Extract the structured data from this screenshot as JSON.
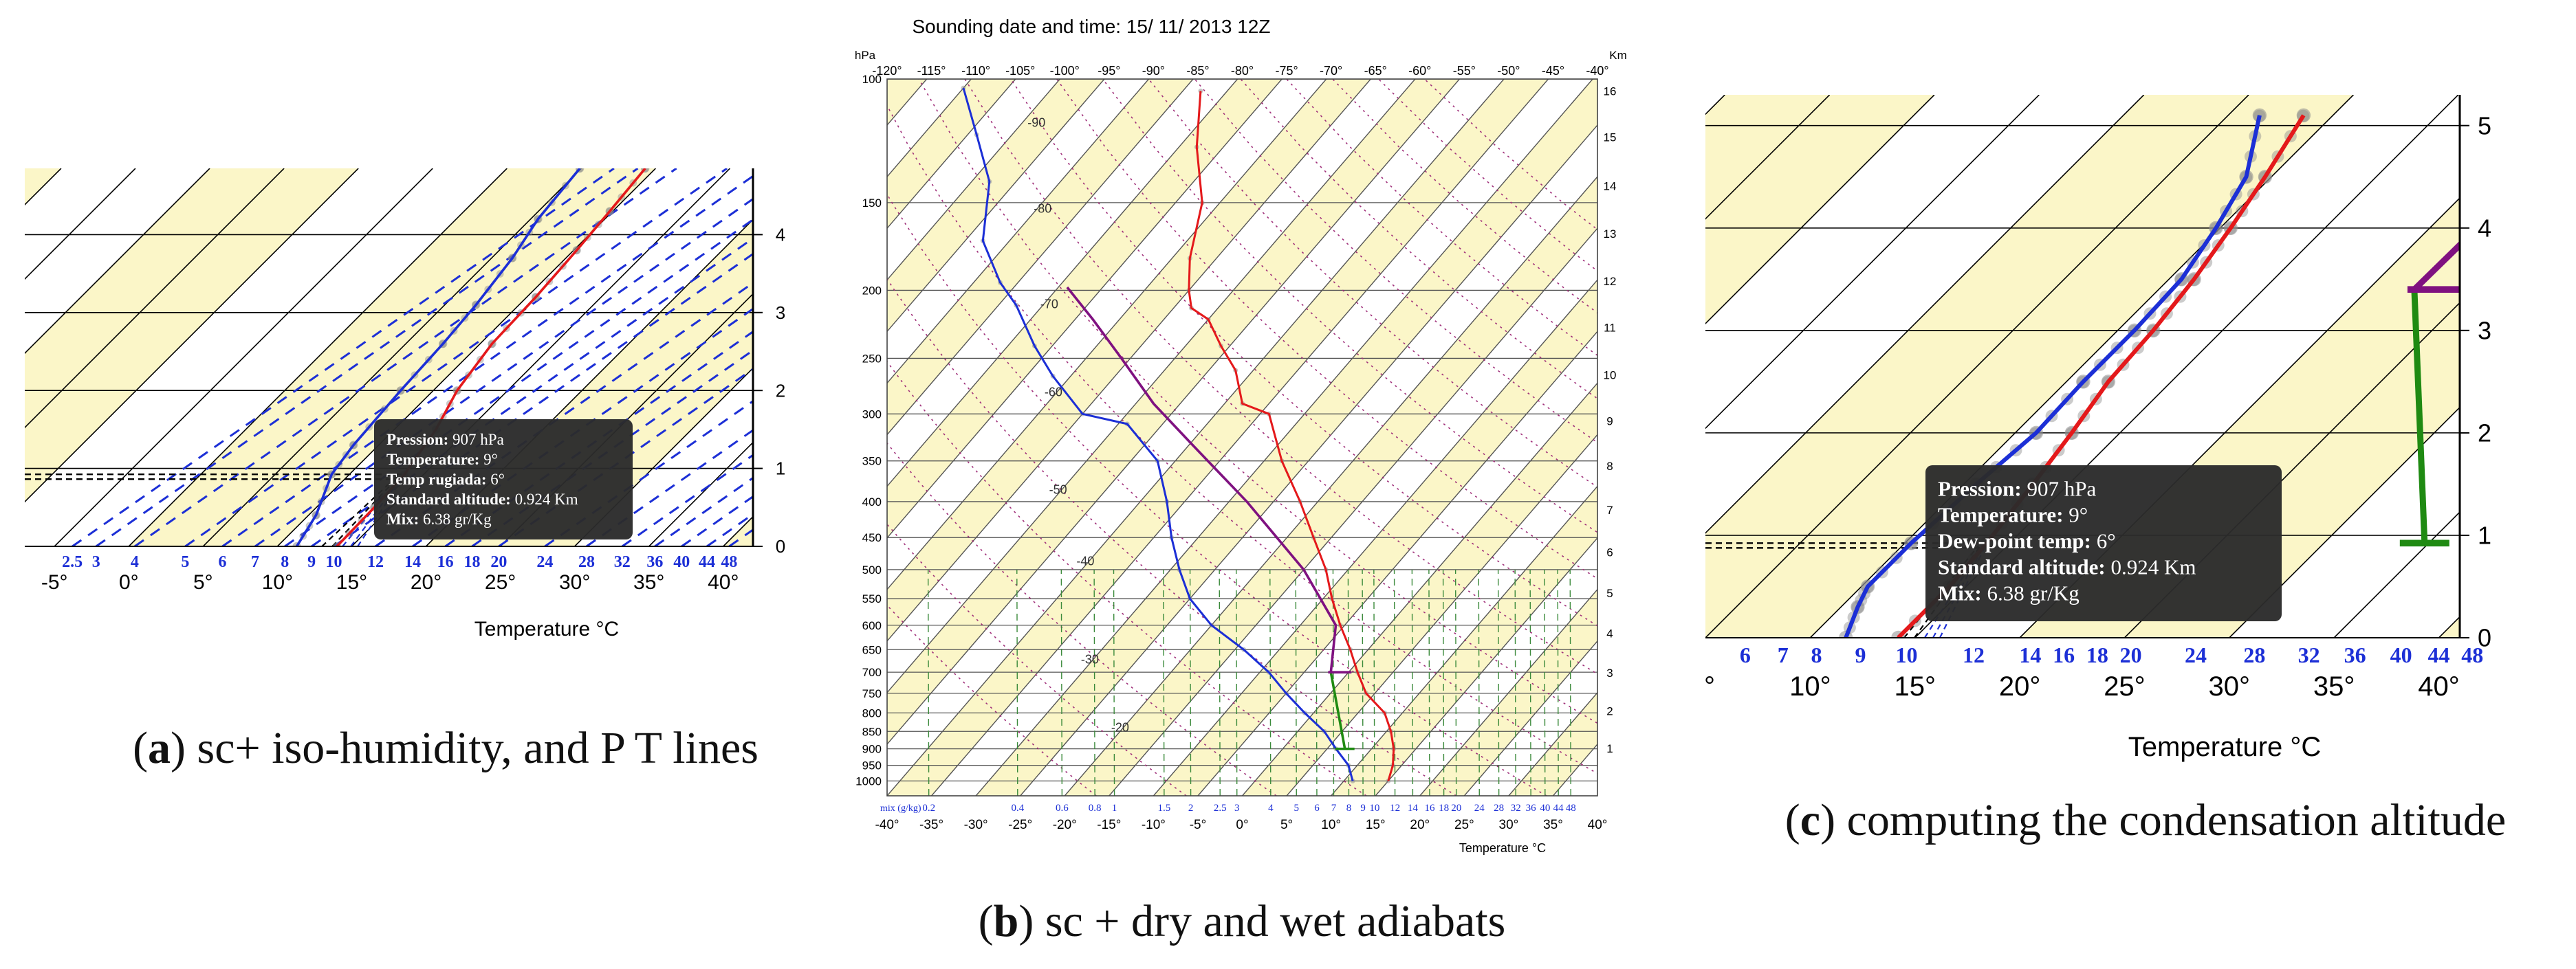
{
  "chart_data": [
    {
      "id": "a",
      "type": "line",
      "subtype": "skew-t",
      "caption_letter": "a",
      "caption_text": " sc+ iso-humidity, and P T lines",
      "xlabel": "Temperature °C",
      "xlim": [
        -7,
        42
      ],
      "x_ticks": [
        "-5°",
        "0°",
        "5°",
        "10°",
        "15°",
        "20°",
        "25°",
        "30°",
        "35°",
        "40°"
      ],
      "x_tick_values": [
        -5,
        0,
        5,
        10,
        15,
        20,
        25,
        30,
        35,
        40
      ],
      "ylim": [
        0,
        4.85
      ],
      "y_ticks": [
        "0",
        "1",
        "2",
        "3",
        "4"
      ],
      "y_tick_values": [
        0,
        1,
        2,
        3,
        4
      ],
      "mixing_ratio_labels": [
        "2.5",
        "3",
        "4",
        "5",
        "6",
        "7",
        "8",
        "9",
        "10",
        "12",
        "14",
        "16",
        "18",
        "20",
        "24",
        "28",
        "32",
        "36",
        "40",
        "44",
        "48"
      ],
      "mixing_ratio_positions": [
        -3.8,
        -2.2,
        0.4,
        3.8,
        6.3,
        8.5,
        10.5,
        12.3,
        13.8,
        16.6,
        19.1,
        21.3,
        23.1,
        24.9,
        28,
        30.8,
        33.2,
        35.4,
        37.2,
        38.9,
        40.4
      ],
      "temperature_profile": [
        [
          14,
          0
        ],
        [
          13.9,
          0.5
        ],
        [
          13.7,
          0.924
        ],
        [
          12.8,
          1.5
        ],
        [
          11.6,
          2
        ],
        [
          10.8,
          2.6
        ],
        [
          10.6,
          3.2
        ],
        [
          10.2,
          3.8
        ],
        [
          9.8,
          4.3
        ],
        [
          9.3,
          4.85
        ]
      ],
      "dewpoint_profile": [
        [
          11.3,
          0
        ],
        [
          10.5,
          0.4
        ],
        [
          8.8,
          0.924
        ],
        [
          8.3,
          1.3
        ],
        [
          7.8,
          2
        ],
        [
          7.5,
          2.6
        ],
        [
          7.1,
          3.1
        ],
        [
          6.4,
          3.7
        ],
        [
          5.5,
          4.2
        ],
        [
          4.9,
          4.85
        ]
      ],
      "lcl_altitude": 0.924,
      "tooltip": {
        "lines": [
          [
            "Pression:",
            "907 hPa"
          ],
          [
            "Temperature:",
            "9°"
          ],
          [
            "Temp rugiada:",
            "6°"
          ],
          [
            "Standard altitude:",
            "0.924 Km"
          ],
          [
            "Mix:",
            "6.38 gr/Kg"
          ]
        ]
      }
    },
    {
      "id": "b",
      "type": "line",
      "subtype": "skew-t",
      "caption_letter": "b",
      "caption_text": " sc + dry and wet adiabats",
      "title": "Sounding date and time: 15/ 11/ 2013 12Z",
      "left_unit": "hPa",
      "right_unit": "Km",
      "xlabel": "Temperature °C",
      "xlim": [
        -40,
        40
      ],
      "x_ticks": [
        "-40°",
        "-35°",
        "-30°",
        "-25°",
        "-20°",
        "-15°",
        "-10°",
        "-5°",
        "0°",
        "5°",
        "10°",
        "15°",
        "20°",
        "25°",
        "30°",
        "35°",
        "40°"
      ],
      "x_tick_values": [
        -40,
        -35,
        -30,
        -25,
        -20,
        -15,
        -10,
        -5,
        0,
        5,
        10,
        15,
        20,
        25,
        30,
        35,
        40
      ],
      "top_ticks": [
        "-120°",
        "-115°",
        "-110°",
        "-105°",
        "-100°",
        "-95°",
        "-90°",
        "-85°",
        "-80°",
        "-75°",
        "-70°",
        "-65°",
        "-60°",
        "-55°",
        "-50°",
        "-45°",
        "-40°"
      ],
      "pressure_ticks": [
        "100",
        "150",
        "200",
        "250",
        "300",
        "350",
        "400",
        "450",
        "500",
        "550",
        "600",
        "650",
        "700",
        "750",
        "800",
        "850",
        "900",
        "950",
        "1000"
      ],
      "pressure_values": [
        100,
        150,
        200,
        250,
        300,
        350,
        400,
        450,
        500,
        550,
        600,
        650,
        700,
        750,
        800,
        850,
        900,
        950,
        1000
      ],
      "km_ticks": [
        "1",
        "2",
        "3",
        "4",
        "5",
        "6",
        "7",
        "8",
        "9",
        "10",
        "11",
        "12",
        "13",
        "14",
        "15",
        "16"
      ],
      "km_values": [
        1,
        2,
        3,
        4,
        5,
        6,
        7,
        8,
        9,
        10,
        11,
        12,
        13,
        14,
        15,
        16
      ],
      "km_pressures": [
        899,
        795,
        701,
        616,
        540,
        472,
        411,
        356,
        307,
        264,
        226,
        194,
        166,
        142,
        121,
        104
      ],
      "isotherm_labels": [
        "-90",
        "-80",
        "-70",
        "-60",
        "-50",
        "-40",
        "-30",
        "-20"
      ],
      "isotherm_label_pos": [
        [
          -88,
          117
        ],
        [
          -79,
          155
        ],
        [
          -69,
          212
        ],
        [
          -60,
          283
        ],
        [
          -50,
          390
        ],
        [
          -40,
          493
        ],
        [
          -30,
          680
        ],
        [
          -20,
          850
        ]
      ],
      "mix_prefix": "mix (g/kg)",
      "mixing_ratio_labels": [
        "0.2",
        "0.4",
        "0.6",
        "0.8",
        "1",
        "1.5",
        "2",
        "2.5",
        "3",
        "4",
        "5",
        "6",
        "7",
        "8",
        "9",
        "10",
        "12",
        "14",
        "16",
        "18",
        "20",
        "24",
        "28",
        "32",
        "36",
        "40",
        "44",
        "48"
      ],
      "mixing_ratio_positions": [
        -35.3,
        -25.3,
        -20.3,
        -16.6,
        -14.4,
        -8.8,
        -5.8,
        -2.5,
        -0.6,
        3.2,
        6.1,
        8.4,
        10.3,
        12,
        13.6,
        14.9,
        17.2,
        19.2,
        21.1,
        22.7,
        24.1,
        26.7,
        28.9,
        30.8,
        32.5,
        34.1,
        35.6,
        37
      ],
      "temperature_profile": [
        [
          15,
          1000
        ],
        [
          14,
          950
        ],
        [
          12.5,
          900
        ],
        [
          10.5,
          850
        ],
        [
          8,
          800
        ],
        [
          4,
          750
        ],
        [
          1,
          700
        ],
        [
          -2,
          650
        ],
        [
          -5.5,
          600
        ],
        [
          -9,
          550
        ],
        [
          -12.5,
          500
        ],
        [
          -17,
          450
        ],
        [
          -22,
          400
        ],
        [
          -28,
          350
        ],
        [
          -34,
          300
        ],
        [
          -38,
          290
        ],
        [
          -42,
          260
        ],
        [
          -46,
          240
        ],
        [
          -50,
          220
        ],
        [
          -53,
          212
        ],
        [
          -55,
          200
        ],
        [
          -58,
          180
        ],
        [
          -62,
          150
        ],
        [
          -68,
          125
        ],
        [
          -73,
          104
        ]
      ],
      "dewpoint_profile": [
        [
          11,
          1000
        ],
        [
          9,
          950
        ],
        [
          6,
          900
        ],
        [
          3,
          850
        ],
        [
          -1,
          800
        ],
        [
          -5,
          750
        ],
        [
          -9,
          700
        ],
        [
          -14,
          650
        ],
        [
          -20,
          600
        ],
        [
          -25,
          550
        ],
        [
          -29,
          500
        ],
        [
          -33,
          450
        ],
        [
          -37,
          400
        ],
        [
          -42,
          350
        ],
        [
          -49,
          310
        ],
        [
          -55,
          300
        ],
        [
          -62,
          265
        ],
        [
          -67,
          240
        ],
        [
          -73,
          210
        ],
        [
          -77,
          195
        ],
        [
          -83,
          170
        ],
        [
          -88,
          140
        ],
        [
          -94,
          120
        ],
        [
          -100,
          103
        ]
      ],
      "parcel_dry": [
        [
          7,
          900
        ],
        [
          -2,
          700
        ]
      ],
      "parcel_moist": [
        [
          -2,
          700
        ],
        [
          -6,
          600
        ],
        [
          -15,
          500
        ],
        [
          -28,
          400
        ],
        [
          -40,
          330
        ],
        [
          -48,
          290
        ],
        [
          -56,
          250
        ],
        [
          -63,
          220
        ],
        [
          -69,
          198
        ]
      ]
    },
    {
      "id": "c",
      "type": "line",
      "subtype": "skew-t",
      "caption_letter": "c",
      "caption_text": " computing the condensation altitude",
      "xlabel": "Temperature °C",
      "xlim": [
        5,
        41
      ],
      "x_ticks": [
        "10°",
        "15°",
        "20°",
        "25°",
        "30°",
        "35°",
        "40°"
      ],
      "x_tick_values": [
        10,
        15,
        20,
        25,
        30,
        35,
        40
      ],
      "x_partial_tick": "°",
      "ylim": [
        0,
        5.3
      ],
      "y_ticks": [
        "0",
        "1",
        "2",
        "3",
        "4",
        "5"
      ],
      "y_tick_values": [
        0,
        1,
        2,
        3,
        4,
        5
      ],
      "mixing_ratio_labels": [
        "6",
        "7",
        "8",
        "9",
        "10",
        "12",
        "14",
        "16",
        "18",
        "20",
        "24",
        "28",
        "32",
        "36",
        "40",
        "44",
        "48"
      ],
      "mixing_ratio_positions": [
        6.9,
        8.7,
        10.3,
        12.4,
        14.6,
        17.8,
        20.5,
        22.1,
        23.7,
        25.3,
        28.4,
        31.2,
        33.8,
        36,
        38.2,
        40,
        41.6
      ],
      "temperature_profile": [
        [
          14.2,
          0
        ],
        [
          14.2,
          0.5
        ],
        [
          13.9,
          0.924
        ],
        [
          13.3,
          1.5
        ],
        [
          12.7,
          2
        ],
        [
          12,
          2.5
        ],
        [
          11.7,
          3
        ],
        [
          11.2,
          3.5
        ],
        [
          10.5,
          4
        ],
        [
          9.7,
          4.5
        ],
        [
          8.6,
          5.1
        ]
      ],
      "dewpoint_profile": [
        [
          11.7,
          0
        ],
        [
          10.8,
          0.3
        ],
        [
          10.3,
          0.5
        ],
        [
          10.3,
          0.924
        ],
        [
          10.6,
          1.5
        ],
        [
          11,
          2
        ],
        [
          10.8,
          2.5
        ],
        [
          10.8,
          3
        ],
        [
          10.6,
          3.5
        ],
        [
          9.8,
          4
        ],
        [
          8.8,
          4.5
        ],
        [
          6.5,
          5.1
        ]
      ],
      "lcl_altitude": 0.924,
      "parcel_dry": [
        [
          34.8,
          0.924
        ],
        [
          22.2,
          3.4
        ]
      ],
      "parcel_moist": [
        [
          22.2,
          3.4
        ],
        [
          22.3,
          4.3
        ],
        [
          21.8,
          5.1
        ]
      ],
      "tooltip": {
        "lines": [
          [
            "Pression:",
            "907 hPa"
          ],
          [
            "Temperature:",
            "9°"
          ],
          [
            "Dew-point temp:",
            "6°"
          ],
          [
            "Standard altitude:",
            "0.924 Km"
          ],
          [
            "Mix:",
            "6.38 gr/Kg"
          ]
        ]
      }
    }
  ],
  "colors": {
    "band": "#fbf6c8",
    "temperature": "#e4191b",
    "dewpoint": "#1c2fd6",
    "dotted_profile": "#8c8c8c",
    "iso_humidity": "#1c2fd6",
    "moist_adiabat": "#7f1180",
    "dry_adiabat": "#1f8a12",
    "tooltip_bg": "#2b2b2b",
    "grid": "#000000"
  }
}
